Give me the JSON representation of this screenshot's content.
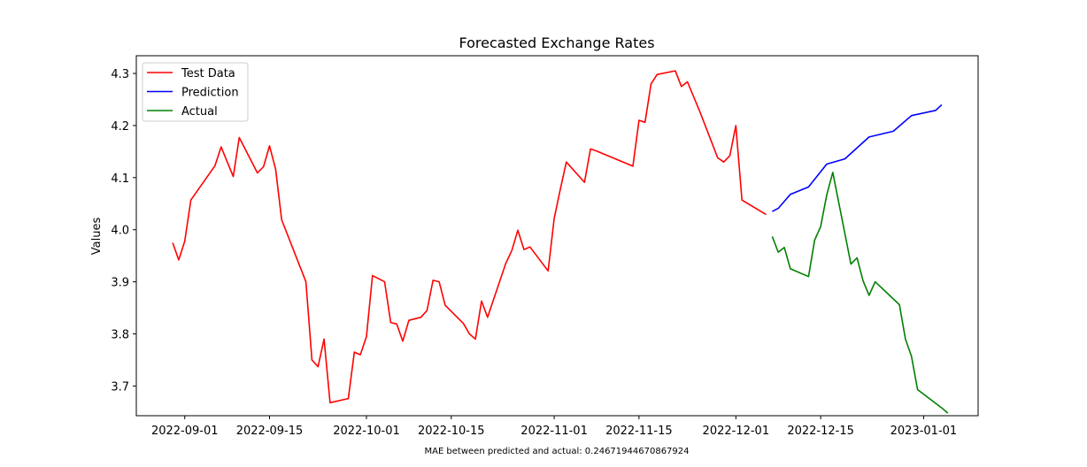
{
  "chart_data": {
    "type": "line",
    "title": "Forecasted Exchange Rates",
    "xlabel": "",
    "ylabel": "Values",
    "footer": "MAE between predicted and actual: 0.24671944670867924",
    "xlim": [
      "2022-08-24",
      "2023-01-10"
    ],
    "ylim": [
      3.643,
      4.334
    ],
    "x_ticks": [
      "2022-09-01",
      "2022-09-15",
      "2022-10-01",
      "2022-10-15",
      "2022-11-01",
      "2022-11-15",
      "2022-12-01",
      "2022-12-15",
      "2023-01-01"
    ],
    "y_ticks": [
      3.7,
      3.8,
      3.9,
      4.0,
      4.1,
      4.2,
      4.3
    ],
    "y_tick_labels": [
      "3.7",
      "3.8",
      "3.9",
      "4.0",
      "4.1",
      "4.2",
      "4.3"
    ],
    "grid": false,
    "legend_position": "top-left",
    "series": [
      {
        "name": "Test Data",
        "color": "#ff0000",
        "points": [
          [
            "2022-08-30",
            3.975
          ],
          [
            "2022-08-31",
            3.942
          ],
          [
            "2022-09-01",
            3.978
          ],
          [
            "2022-09-02",
            4.057
          ],
          [
            "2022-09-06",
            4.123
          ],
          [
            "2022-09-07",
            4.159
          ],
          [
            "2022-09-09",
            4.102
          ],
          [
            "2022-09-10",
            4.177
          ],
          [
            "2022-09-13",
            4.109
          ],
          [
            "2022-09-14",
            4.121
          ],
          [
            "2022-09-15",
            4.161
          ],
          [
            "2022-09-16",
            4.116
          ],
          [
            "2022-09-17",
            4.019
          ],
          [
            "2022-09-21",
            3.9
          ],
          [
            "2022-09-22",
            3.75
          ],
          [
            "2022-09-23",
            3.737
          ],
          [
            "2022-09-24",
            3.79
          ],
          [
            "2022-09-25",
            3.668
          ],
          [
            "2022-09-28",
            3.676
          ],
          [
            "2022-09-29",
            3.765
          ],
          [
            "2022-09-30",
            3.76
          ],
          [
            "2022-10-01",
            3.795
          ],
          [
            "2022-10-02",
            3.912
          ],
          [
            "2022-10-04",
            3.9
          ],
          [
            "2022-10-05",
            3.822
          ],
          [
            "2022-10-06",
            3.819
          ],
          [
            "2022-10-07",
            3.786
          ],
          [
            "2022-10-08",
            3.826
          ],
          [
            "2022-10-10",
            3.832
          ],
          [
            "2022-10-11",
            3.845
          ],
          [
            "2022-10-12",
            3.903
          ],
          [
            "2022-10-13",
            3.9
          ],
          [
            "2022-10-14",
            3.855
          ],
          [
            "2022-10-17",
            3.82
          ],
          [
            "2022-10-18",
            3.8
          ],
          [
            "2022-10-19",
            3.79
          ],
          [
            "2022-10-20",
            3.863
          ],
          [
            "2022-10-21",
            3.832
          ],
          [
            "2022-10-24",
            3.935
          ],
          [
            "2022-10-25",
            3.96
          ],
          [
            "2022-10-26",
            3.999
          ],
          [
            "2022-10-27",
            3.962
          ],
          [
            "2022-10-28",
            3.967
          ],
          [
            "2022-10-31",
            3.921
          ],
          [
            "2022-11-01",
            4.022
          ],
          [
            "2022-11-02",
            4.077
          ],
          [
            "2022-11-03",
            4.13
          ],
          [
            "2022-11-04",
            4.117
          ],
          [
            "2022-11-06",
            4.091
          ],
          [
            "2022-11-07",
            4.155
          ],
          [
            "2022-11-08",
            4.151
          ],
          [
            "2022-11-14",
            4.122
          ],
          [
            "2022-11-15",
            4.21
          ],
          [
            "2022-11-16",
            4.206
          ],
          [
            "2022-11-17",
            4.28
          ],
          [
            "2022-11-18",
            4.298
          ],
          [
            "2022-11-21",
            4.305
          ],
          [
            "2022-11-22",
            4.275
          ],
          [
            "2022-11-23",
            4.284
          ],
          [
            "2022-11-25",
            4.228
          ],
          [
            "2022-11-28",
            4.138
          ],
          [
            "2022-11-29",
            4.13
          ],
          [
            "2022-11-30",
            4.142
          ],
          [
            "2022-12-01",
            4.2
          ],
          [
            "2022-12-02",
            4.057
          ],
          [
            "2022-12-06",
            4.029
          ]
        ]
      },
      {
        "name": "Prediction",
        "color": "#0000ff",
        "points": [
          [
            "2022-12-07",
            4.035
          ],
          [
            "2022-12-08",
            4.041
          ],
          [
            "2022-12-10",
            4.068
          ],
          [
            "2022-12-13",
            4.082
          ],
          [
            "2022-12-16",
            4.126
          ],
          [
            "2022-12-19",
            4.136
          ],
          [
            "2022-12-23",
            4.178
          ],
          [
            "2022-12-27",
            4.189
          ],
          [
            "2022-12-30",
            4.219
          ],
          [
            "2023-01-03",
            4.229
          ],
          [
            "2023-01-04",
            4.24
          ]
        ]
      },
      {
        "name": "Actual",
        "color": "#008000",
        "points": [
          [
            "2022-12-07",
            3.987
          ],
          [
            "2022-12-08",
            3.957
          ],
          [
            "2022-12-09",
            3.966
          ],
          [
            "2022-12-10",
            3.925
          ],
          [
            "2022-12-13",
            3.91
          ],
          [
            "2022-12-14",
            3.98
          ],
          [
            "2022-12-15",
            4.006
          ],
          [
            "2022-12-16",
            4.067
          ],
          [
            "2022-12-17",
            4.11
          ],
          [
            "2022-12-20",
            3.934
          ],
          [
            "2022-12-21",
            3.946
          ],
          [
            "2022-12-22",
            3.902
          ],
          [
            "2022-12-23",
            3.874
          ],
          [
            "2022-12-24",
            3.9
          ],
          [
            "2022-12-28",
            3.856
          ],
          [
            "2022-12-29",
            3.79
          ],
          [
            "2022-12-30",
            3.757
          ],
          [
            "2022-12-31",
            3.693
          ],
          [
            "2023-01-04",
            3.658
          ],
          [
            "2023-01-05",
            3.648
          ]
        ]
      }
    ]
  }
}
